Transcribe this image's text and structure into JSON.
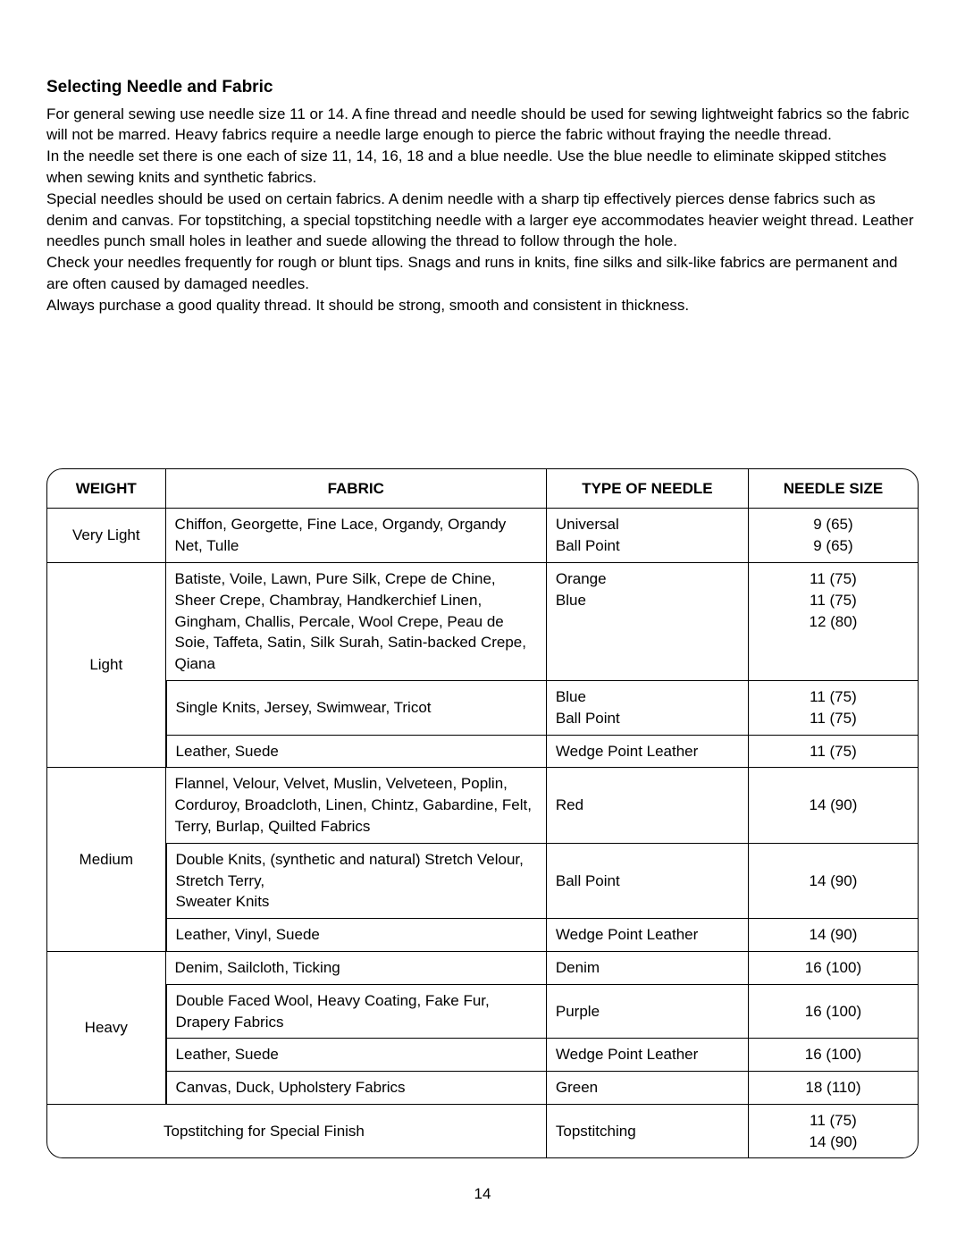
{
  "heading": "Selecting Needle and Fabric",
  "paragraphs": [
    "For general sewing use needle size 11 or 14.  A fine thread and needle should be used for sewing lightweight fabrics so the fabric will not be marred. Heavy fabrics require a needle large enough to pierce the fabric without fraying the needle thread.",
    "In the needle set there is one each of size 11, 14, 16, 18 and a blue needle.  Use the blue needle to eliminate skipped stitches when sewing knits and synthetic fabrics.",
    "Special needles should be used on certain fabrics.  A denim needle with a sharp tip effectively pierces dense fabrics such as denim and canvas. For topstitching, a special topstitching needle with a larger eye accommodates heavier weight thread. Leather needles punch small holes in leather and suede allowing the thread to follow through the hole.",
    "Check your needles frequently for rough or blunt tips.  Snags and runs in knits, fine silks and silk-like fabrics are permanent and are often caused by damaged needles.",
    "Always purchase a good quality thread. It should be strong, smooth and consistent in thickness."
  ],
  "table": {
    "headers": {
      "weight": "WEIGHT",
      "fabric": "FABRIC",
      "needle_type": "TYPE OF NEEDLE",
      "needle_size": "NEEDLE SIZE"
    },
    "rows": {
      "very_light": {
        "weight": "Very Light",
        "fabric": "Chiffon, Georgette, Fine Lace, Organdy, Organdy Net, Tulle",
        "needle_type": "Universal\nBall Point",
        "needle_size": "9 (65)\n9 (65)"
      },
      "light_1": {
        "weight": "Light",
        "fabric": "Batiste, Voile, Lawn, Pure Silk, Crepe de Chine, Sheer Crepe, Chambray, Handkerchief Linen, Gingham, Challis, Percale, Wool Crepe, Peau de Soie, Taffeta, Satin, Silk Surah, Satin-backed Crepe, Qiana",
        "needle_type": "Orange\nBlue",
        "needle_size": "11 (75)\n11 (75)\n12 (80)"
      },
      "light_2": {
        "fabric": "Single Knits, Jersey, Swimwear, Tricot",
        "needle_type": "Blue\nBall Point",
        "needle_size": "11 (75)\n11 (75)"
      },
      "light_3": {
        "fabric": "Leather, Suede",
        "needle_type": "Wedge Point Leather",
        "needle_size": "11 (75)"
      },
      "medium_1": {
        "weight": "Medium",
        "fabric": "Flannel, Velour, Velvet, Muslin, Velveteen, Poplin, Corduroy, Broadcloth, Linen, Chintz, Gabardine, Felt, Terry, Burlap, Quilted Fabrics",
        "needle_type": "Red",
        "needle_size": "14 (90)"
      },
      "medium_2": {
        "fabric": "Double Knits, (synthetic and natural) Stretch Velour,\nStretch Terry,\nSweater Knits",
        "needle_type": "Ball Point",
        "needle_size": "14 (90)"
      },
      "medium_3": {
        "fabric": "Leather, Vinyl, Suede",
        "needle_type": "Wedge Point Leather",
        "needle_size": "14 (90)"
      },
      "heavy_1": {
        "weight": "Heavy",
        "fabric": "Denim, Sailcloth, Ticking",
        "needle_type": "Denim",
        "needle_size": "16 (100)"
      },
      "heavy_2": {
        "fabric": "Double Faced Wool, Heavy Coating, Fake Fur, Drapery Fabrics",
        "needle_type": "Purple",
        "needle_size": "16 (100)"
      },
      "heavy_3": {
        "fabric": "Leather, Suede",
        "needle_type": "Wedge Point Leather",
        "needle_size": "16 (100)"
      },
      "heavy_4": {
        "fabric": "Canvas, Duck, Upholstery Fabrics",
        "needle_type": "Green",
        "needle_size": "18 (110)"
      },
      "topstitch": {
        "fabric": "Topstitching for Special Finish",
        "needle_type": "Topstitching",
        "needle_size": "11 (75)\n14 (90)"
      }
    }
  },
  "page_number": "14"
}
